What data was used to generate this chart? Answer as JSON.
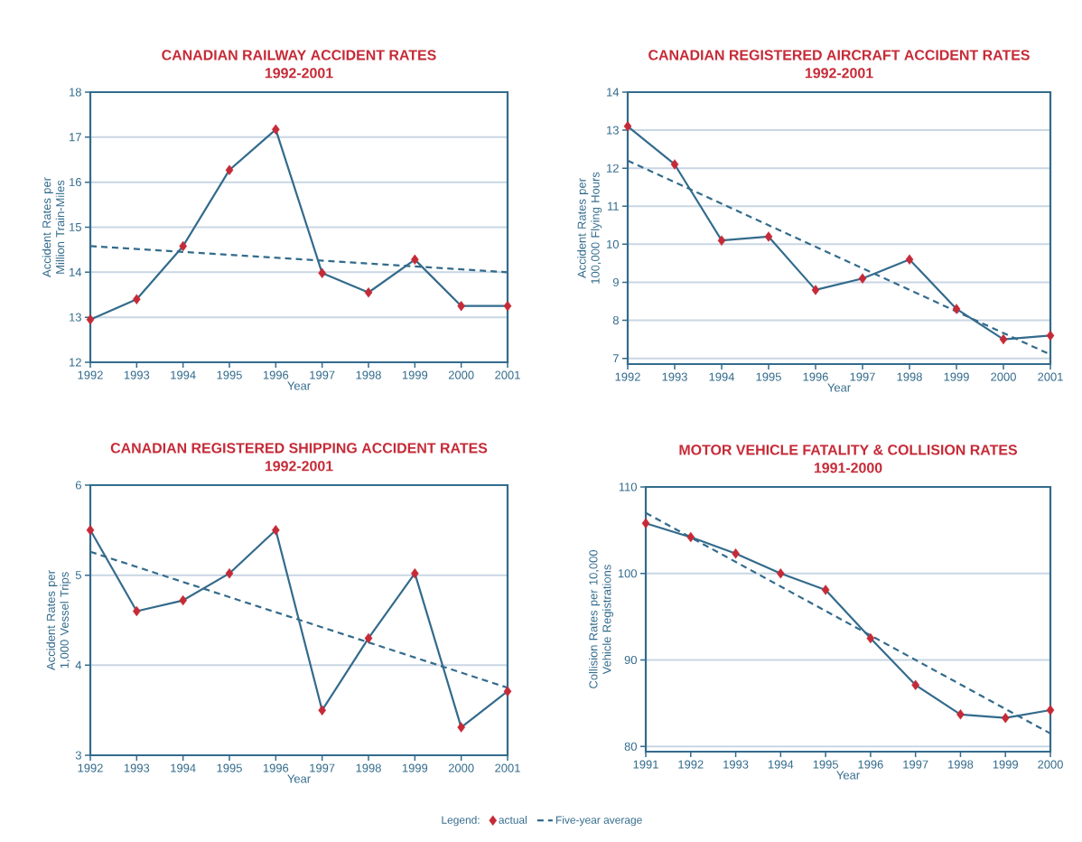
{
  "chart_data": [
    {
      "type": "line",
      "title": "CANADIAN RAILWAY ACCIDENT RATES",
      "subtitle": "1992-2001",
      "xlabel": "Year",
      "ylabel": "Accident Rates per Million Train-Miles",
      "x": [
        1992,
        1993,
        1994,
        1995,
        1996,
        1997,
        1998,
        1999,
        2000,
        2001
      ],
      "xlim": [
        1992,
        2001
      ],
      "xticks": [
        1992,
        1993,
        1994,
        1995,
        1996,
        1997,
        1998,
        1999,
        2000,
        2001
      ],
      "ylim": [
        12,
        18
      ],
      "yticks": [
        12,
        13,
        14,
        15,
        16,
        17,
        18
      ],
      "grid": "y",
      "series": [
        {
          "type": "line",
          "color": "#336b8c",
          "marker": "none",
          "values": [
            12.95,
            13.4,
            14.58,
            16.27,
            17.17,
            13.98,
            13.55,
            14.28,
            13.25,
            13.25
          ]
        },
        {
          "type": "scatter",
          "color": "#c62a37",
          "marker": "diamond",
          "values": [
            12.95,
            13.4,
            14.58,
            16.27,
            17.17,
            13.98,
            13.55,
            14.28,
            13.25,
            13.25
          ]
        },
        {
          "type": "line",
          "color": "#336b8c",
          "line_style": "dashed",
          "marker": "none",
          "x": [
            1992,
            2001
          ],
          "values": [
            14.58,
            14.0
          ]
        }
      ]
    },
    {
      "type": "line",
      "title": "CANADIAN REGISTERED AIRCRAFT ACCIDENT RATES",
      "subtitle": "1992-2001",
      "xlabel": "Year",
      "ylabel": "Accident Rates per 100,000 Flying Hours",
      "x": [
        1992,
        1993,
        1994,
        1995,
        1996,
        1997,
        1998,
        1999,
        2000,
        2001
      ],
      "xlim": [
        1992,
        2001
      ],
      "xticks": [
        1992,
        1993,
        1994,
        1995,
        1996,
        1997,
        1998,
        1999,
        2000,
        2001
      ],
      "ylim": [
        6.85,
        14
      ],
      "yticks": [
        7,
        8,
        9,
        10,
        11,
        12,
        13,
        14
      ],
      "grid": "y",
      "series": [
        {
          "type": "line",
          "color": "#336b8c",
          "marker": "none",
          "values": [
            13.1,
            12.1,
            10.1,
            10.2,
            8.8,
            9.1,
            9.6,
            8.3,
            7.5,
            7.6
          ]
        },
        {
          "type": "scatter",
          "color": "#c62a37",
          "marker": "diamond",
          "values": [
            13.1,
            12.1,
            10.1,
            10.2,
            8.8,
            9.1,
            9.6,
            8.3,
            7.5,
            7.6
          ]
        },
        {
          "type": "line",
          "color": "#336b8c",
          "line_style": "dashed",
          "marker": "none",
          "x": [
            1992,
            2001
          ],
          "values": [
            12.2,
            7.1
          ]
        }
      ]
    },
    {
      "type": "line",
      "title": "CANADIAN REGISTERED SHIPPING ACCIDENT RATES",
      "subtitle": "1992-2001",
      "xlabel": "Year",
      "ylabel": "Accident Rates per 1,000 Vessel Trips",
      "x": [
        1992,
        1993,
        1994,
        1995,
        1996,
        1997,
        1998,
        1999,
        2000,
        2001
      ],
      "xlim": [
        1992,
        2001
      ],
      "xticks": [
        1992,
        1993,
        1994,
        1995,
        1996,
        1997,
        1998,
        1999,
        2000,
        2001
      ],
      "ylim": [
        3,
        6
      ],
      "yticks": [
        3,
        4,
        5,
        6
      ],
      "grid": "y",
      "series": [
        {
          "type": "line",
          "color": "#336b8c",
          "marker": "none",
          "values": [
            5.5,
            4.6,
            4.72,
            5.02,
            5.5,
            3.5,
            4.3,
            5.02,
            3.31,
            3.71
          ]
        },
        {
          "type": "scatter",
          "color": "#c62a37",
          "marker": "diamond",
          "values": [
            5.5,
            4.6,
            4.72,
            5.02,
            5.5,
            3.5,
            4.3,
            5.02,
            3.31,
            3.71
          ]
        },
        {
          "type": "line",
          "color": "#336b8c",
          "line_style": "dashed",
          "marker": "none",
          "x": [
            1992,
            2001
          ],
          "values": [
            5.26,
            3.75
          ]
        }
      ]
    },
    {
      "type": "line",
      "title": "MOTOR VEHICLE FATALITY & COLLISION RATES",
      "subtitle": "1991-2000",
      "xlabel": "Year",
      "ylabel": "Collision Rates per 10,000 Vehicle Registrations",
      "x": [
        1991,
        1992,
        1993,
        1994,
        1995,
        1996,
        1997,
        1998,
        1999,
        2000
      ],
      "xlim": [
        1991,
        2000
      ],
      "xticks": [
        1991,
        1992,
        1993,
        1994,
        1995,
        1996,
        1997,
        1998,
        1999,
        2000
      ],
      "ylim": [
        79.4,
        110
      ],
      "yticks": [
        80,
        90,
        100,
        110
      ],
      "grid": "y",
      "legend": "bottom",
      "legend_title": "Legend:",
      "series": [
        {
          "type": "line",
          "color": "#336b8c",
          "marker": "none",
          "values": [
            105.8,
            104.2,
            102.3,
            100.0,
            98.1,
            92.5,
            87.1,
            83.7,
            83.3,
            84.2
          ]
        },
        {
          "type": "scatter",
          "name": "actual",
          "color": "#c62a37",
          "marker": "diamond",
          "values": [
            105.8,
            104.2,
            102.3,
            100.0,
            98.1,
            92.5,
            87.1,
            83.7,
            83.3,
            84.2
          ]
        },
        {
          "type": "line",
          "name": "Five-year average",
          "color": "#336b8c",
          "line_style": "dashed",
          "marker": "none",
          "x": [
            1991,
            2000
          ],
          "values": [
            107.0,
            81.5
          ]
        }
      ]
    }
  ]
}
